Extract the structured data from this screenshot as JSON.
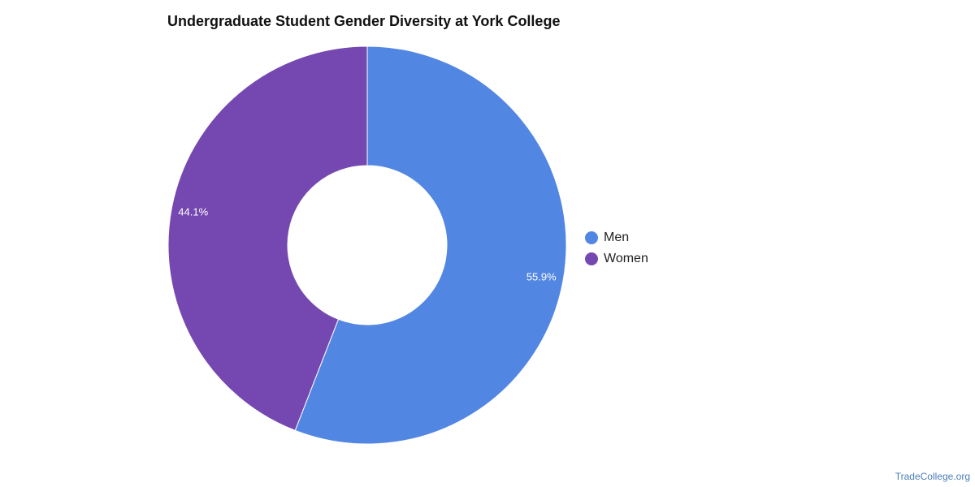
{
  "chart_data": {
    "type": "pie",
    "variant": "donut",
    "title": "Undergraduate Student Gender Diversity at York College",
    "categories": [
      "Men",
      "Women"
    ],
    "values": [
      55.9,
      44.1
    ],
    "data_labels": [
      "55.9%",
      "44.1%"
    ],
    "colors": [
      "#5286e3",
      "#7547b0"
    ],
    "legend_position": "right",
    "start_angle": "top, clockwise"
  },
  "watermark": "TradeCollege.org"
}
